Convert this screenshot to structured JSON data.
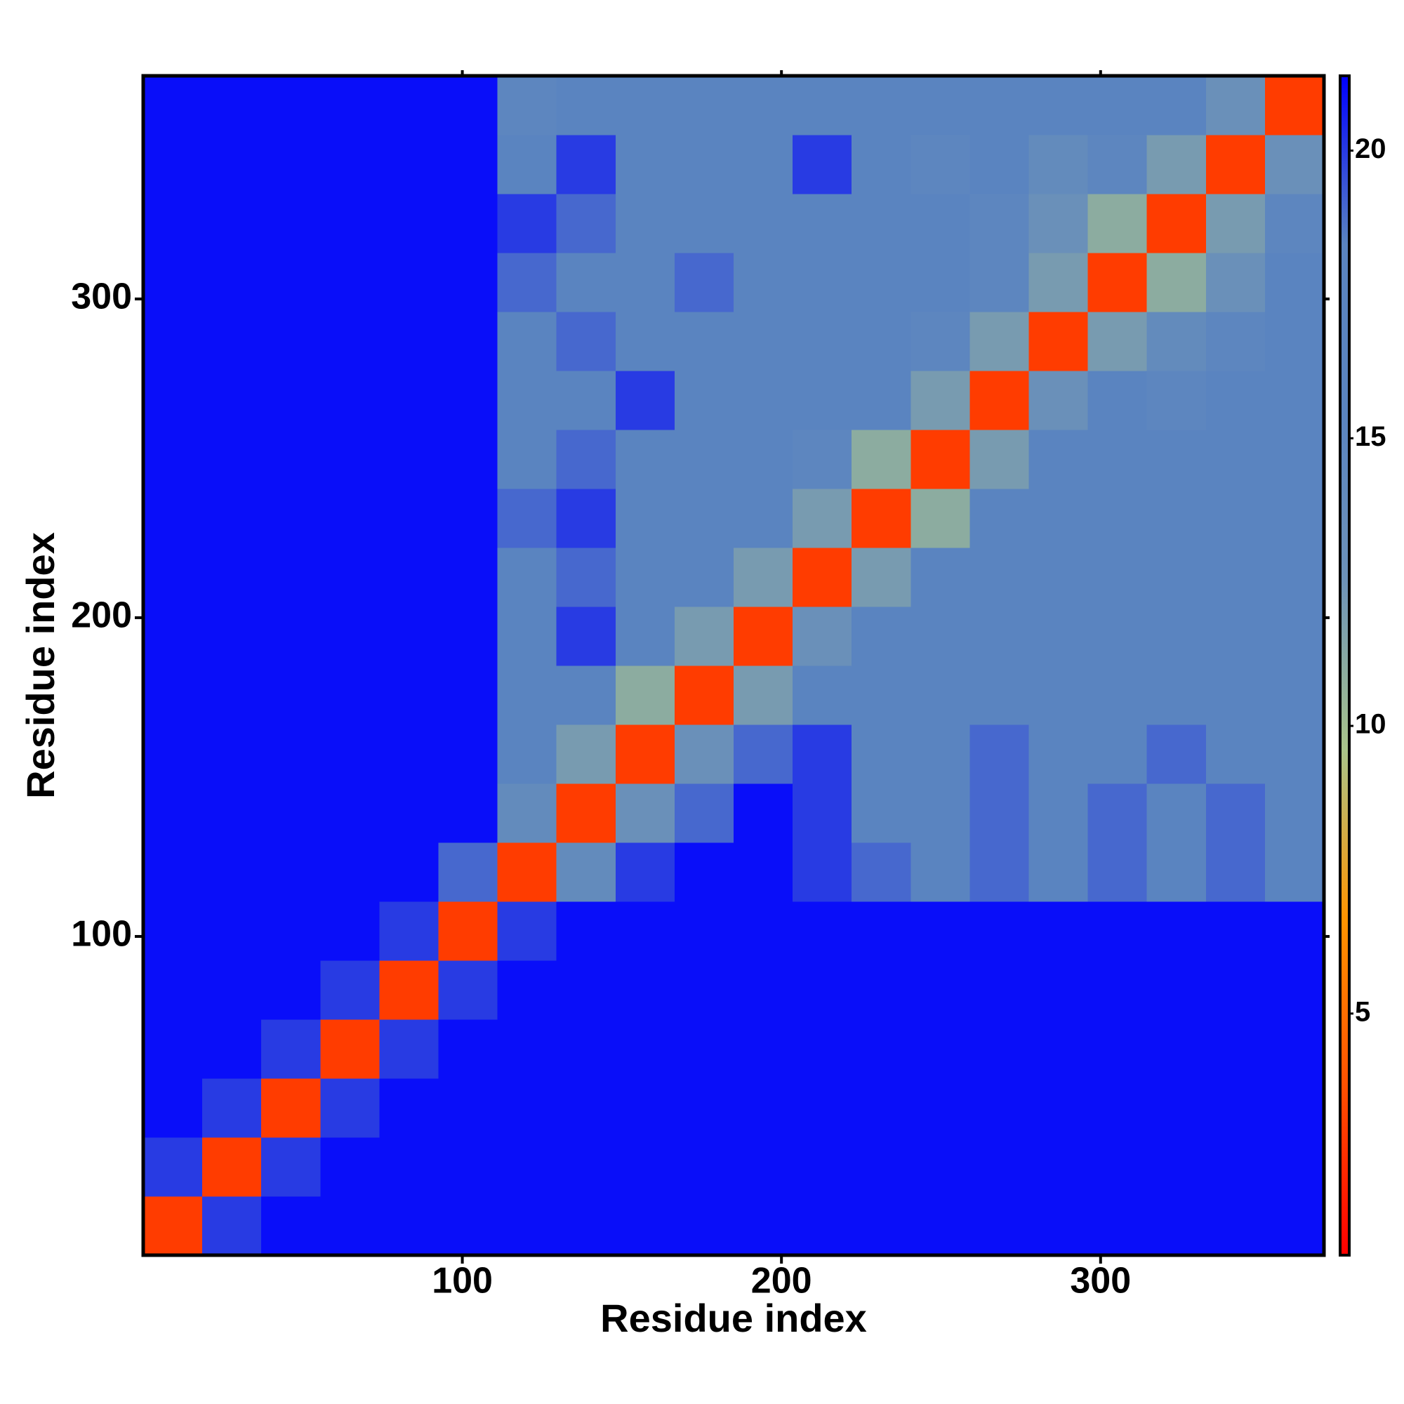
{
  "chart_data": {
    "type": "heatmap",
    "xlabel": "Residue index",
    "ylabel": "Residue index",
    "x_edges": [
      0,
      18.5,
      37,
      55.5,
      74,
      92.5,
      111,
      129.5,
      148,
      166.5,
      185,
      203.5,
      222,
      240.5,
      259,
      277.5,
      296,
      314.5,
      333,
      351.5,
      370
    ],
    "y_edges": [
      0,
      18.5,
      37,
      55.5,
      74,
      92.5,
      111,
      129.5,
      148,
      166.5,
      185,
      203.5,
      222,
      240.5,
      259,
      277.5,
      296,
      314.5,
      333,
      351.5,
      370
    ],
    "z": [
      [
        3,
        20,
        21,
        21,
        21,
        21,
        21,
        21,
        21,
        21,
        21,
        21,
        21,
        21,
        21,
        21,
        21,
        21,
        21,
        21
      ],
      [
        20,
        3,
        20,
        21,
        21,
        21,
        21,
        21,
        21,
        21,
        21,
        21,
        21,
        21,
        21,
        21,
        21,
        21,
        21,
        21
      ],
      [
        21,
        20,
        3,
        20,
        21,
        21,
        21,
        21,
        21,
        21,
        21,
        21,
        21,
        21,
        21,
        21,
        21,
        21,
        21,
        21
      ],
      [
        21,
        21,
        20,
        3,
        20,
        21,
        21,
        21,
        21,
        21,
        21,
        21,
        21,
        21,
        21,
        21,
        21,
        21,
        21,
        21
      ],
      [
        21,
        21,
        21,
        20,
        3,
        20,
        21,
        21,
        21,
        21,
        21,
        21,
        21,
        21,
        21,
        21,
        21,
        21,
        21,
        21
      ],
      [
        21,
        21,
        21,
        21,
        20,
        3,
        20,
        21,
        21,
        21,
        21,
        21,
        21,
        21,
        21,
        21,
        21,
        21,
        21,
        21
      ],
      [
        21,
        21,
        21,
        21,
        21,
        19,
        3,
        14,
        20,
        21,
        21,
        20,
        19,
        18,
        19,
        18,
        19,
        18,
        19,
        18
      ],
      [
        21,
        21,
        21,
        21,
        21,
        21,
        14,
        3,
        13,
        19,
        21,
        20,
        18,
        17,
        19,
        17,
        19,
        18,
        19,
        17
      ],
      [
        21,
        21,
        21,
        21,
        21,
        21,
        17,
        12,
        3,
        13,
        19,
        20,
        17,
        18,
        19,
        17,
        18,
        19,
        18,
        17
      ],
      [
        21,
        21,
        21,
        21,
        21,
        21,
        18,
        17,
        11,
        3,
        12,
        18,
        17,
        17,
        17,
        17,
        16,
        17,
        17,
        18
      ],
      [
        21,
        21,
        21,
        21,
        21,
        21,
        18,
        20,
        17,
        12,
        3,
        13,
        17,
        16,
        17,
        17,
        16,
        17,
        18,
        17
      ],
      [
        21,
        21,
        21,
        21,
        21,
        21,
        18,
        19,
        18,
        17,
        12,
        3,
        12,
        16,
        17,
        17,
        17,
        16,
        17,
        18
      ],
      [
        21,
        21,
        21,
        21,
        21,
        21,
        19,
        20,
        18,
        18,
        17,
        12,
        3,
        11,
        16,
        17,
        17,
        18,
        17,
        16
      ],
      [
        21,
        21,
        21,
        21,
        21,
        21,
        18,
        19,
        17,
        16,
        17,
        15,
        11,
        3,
        12,
        17,
        16,
        17,
        17,
        16
      ],
      [
        21,
        21,
        21,
        21,
        21,
        21,
        18,
        17,
        20,
        17,
        16,
        17,
        16,
        12,
        3,
        13,
        16,
        15,
        17,
        17
      ],
      [
        21,
        21,
        21,
        21,
        21,
        21,
        18,
        19,
        17,
        17,
        17,
        16,
        17,
        15,
        12,
        3,
        12,
        14,
        15,
        17
      ],
      [
        21,
        21,
        21,
        21,
        21,
        21,
        19,
        18,
        17,
        19,
        17,
        17,
        18,
        17,
        15,
        12,
        3,
        11,
        13,
        16
      ],
      [
        21,
        21,
        21,
        21,
        21,
        21,
        20,
        19,
        17,
        16,
        17,
        17,
        18,
        17,
        15,
        13,
        11,
        3,
        12,
        15
      ],
      [
        21,
        21,
        21,
        21,
        21,
        21,
        17,
        20,
        18,
        17,
        18,
        20,
        17,
        15,
        17,
        14,
        15,
        12,
        3,
        13
      ],
      [
        21,
        21,
        21,
        21,
        21,
        21,
        15,
        16,
        18,
        17,
        17,
        18,
        16,
        17,
        17,
        17,
        16,
        17,
        13,
        3
      ]
    ],
    "xlim": [
      0,
      370
    ],
    "ylim": [
      0,
      370
    ],
    "xticks": [
      100,
      200,
      300
    ],
    "yticks": [
      100,
      200,
      300
    ],
    "zlim": [
      0.8,
      21.3
    ],
    "zticks": [
      5,
      10,
      15,
      20
    ],
    "colorscale": [
      "#ff0000",
      "#ff5000",
      "#ff9400",
      "#a9c48a",
      "#6d92b8",
      "#5a84c0",
      "#5a84c0",
      "#0000ff"
    ]
  }
}
